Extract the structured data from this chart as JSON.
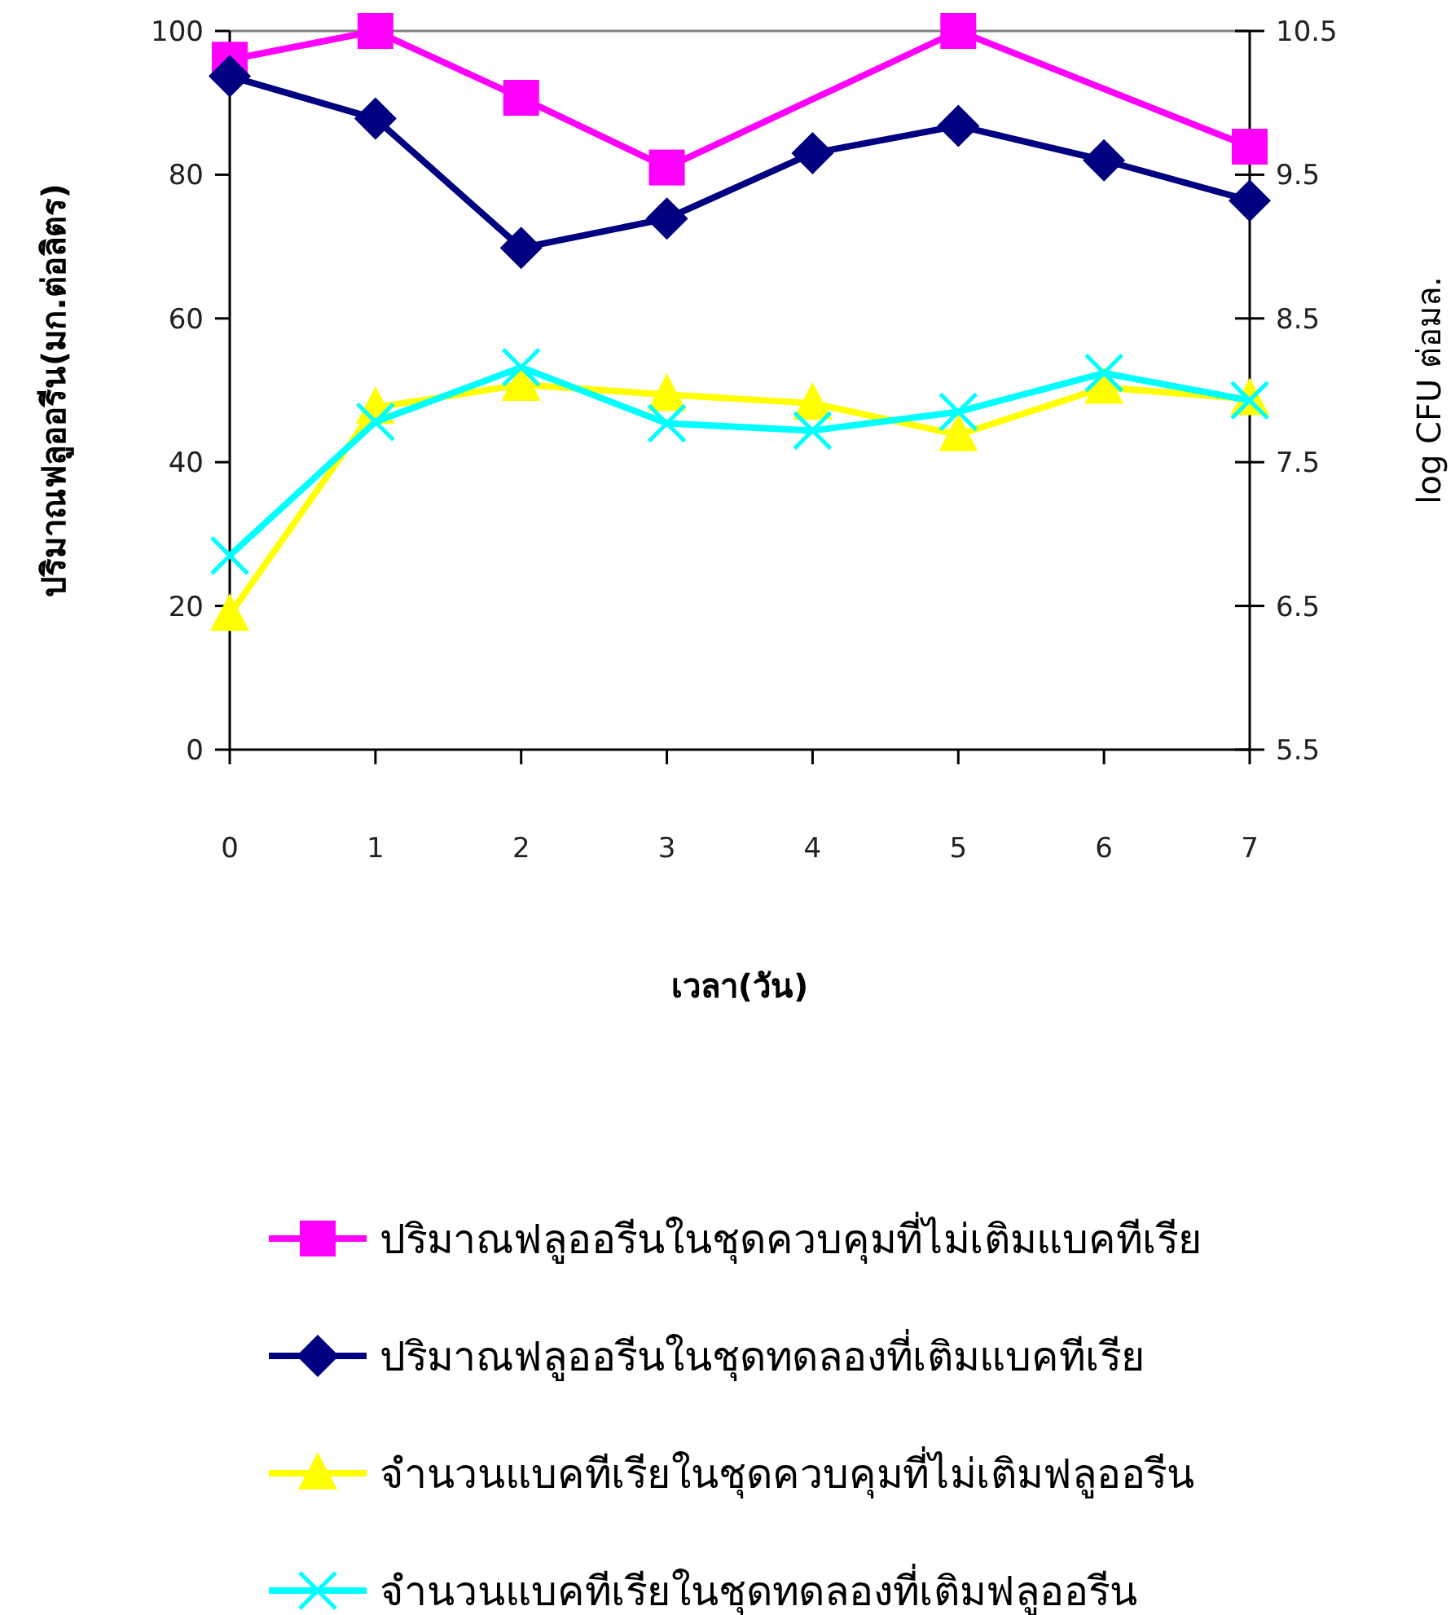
{
  "chart_data": {
    "type": "line",
    "categories": [
      "0",
      "1",
      "2",
      "3",
      "4",
      "5",
      "6",
      "7"
    ],
    "xlabel": "เวลา(วัน)",
    "ylabel": "ปริมาณฟลูออรีน(มก.ต่อลิตร)",
    "y2label": "log CFU ต่อมล.",
    "ylim": [
      0,
      100
    ],
    "yticks": [
      0,
      20,
      40,
      60,
      80,
      100
    ],
    "y2lim": [
      5.5,
      10.5
    ],
    "y2ticks": [
      5.5,
      6.5,
      7.5,
      8.5,
      9.5,
      10.5
    ],
    "legend": "bottom",
    "line_style": "solid",
    "series": [
      {
        "name": "ปริมาณฟลูออรีนในชุดควบคุมที่ไม่เติมแบคทีเรีย",
        "color": "#ff00ff",
        "marker": "square",
        "values": [
          96,
          100,
          90.7,
          81,
          null,
          100,
          null,
          83.9
        ]
      },
      {
        "name": "ปริมาณฟลูออรีนในชุดทดลองที่เติมแบคทีเรีย",
        "color": "#000080",
        "marker": "diamond",
        "values": [
          93.7,
          87.8,
          69.8,
          73.9,
          83,
          86.8,
          82,
          76.4
        ]
      },
      {
        "name": "จำนวนแบคทีเรียในชุดควบคุมที่ไม่เติมฟลูออรีน",
        "color": "#ffff00",
        "marker": "triangle",
        "axis": "y2",
        "values": [
          6.44,
          7.88,
          8.04,
          7.97,
          7.91,
          7.69,
          8.02,
          7.94
        ]
      },
      {
        "name": "จำนวนแบคทีเรียในชุดทดลองที่เติมฟลูออรีน",
        "color": "#00ffff",
        "marker": "cross",
        "axis": "y2",
        "values": [
          6.85,
          7.78,
          8.16,
          7.77,
          7.72,
          7.85,
          8.12,
          7.93
        ]
      }
    ]
  }
}
